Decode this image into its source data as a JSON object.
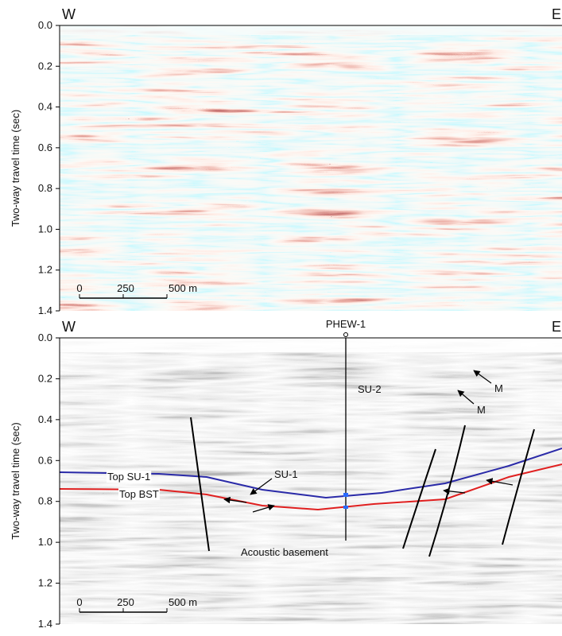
{
  "panels": [
    {
      "left_label": "W",
      "right_label": "E",
      "y_axis_label": "Two-way travel time (sec)",
      "y_ticks": [
        "0.0",
        "0.2",
        "0.4",
        "0.6",
        "0.8",
        "1.0",
        "1.2",
        "1.4"
      ],
      "scale_bar": [
        "0",
        "250",
        "500 m"
      ]
    },
    {
      "left_label": "W",
      "right_label": "E",
      "y_axis_label": "Two-way travel time (sec)",
      "y_ticks": [
        "0.0",
        "0.2",
        "0.4",
        "0.6",
        "0.8",
        "1.0",
        "1.2",
        "1.4"
      ],
      "scale_bar": [
        "0",
        "250",
        "500 m"
      ],
      "well": "PHEW-1",
      "annotations": {
        "top_su1": "Top SU-1",
        "top_bst": "Top BST",
        "su1": "SU-1",
        "su2": "SU-2",
        "m_upper": "M",
        "m_lower": "M",
        "basement": "Acoustic basement"
      }
    }
  ]
}
